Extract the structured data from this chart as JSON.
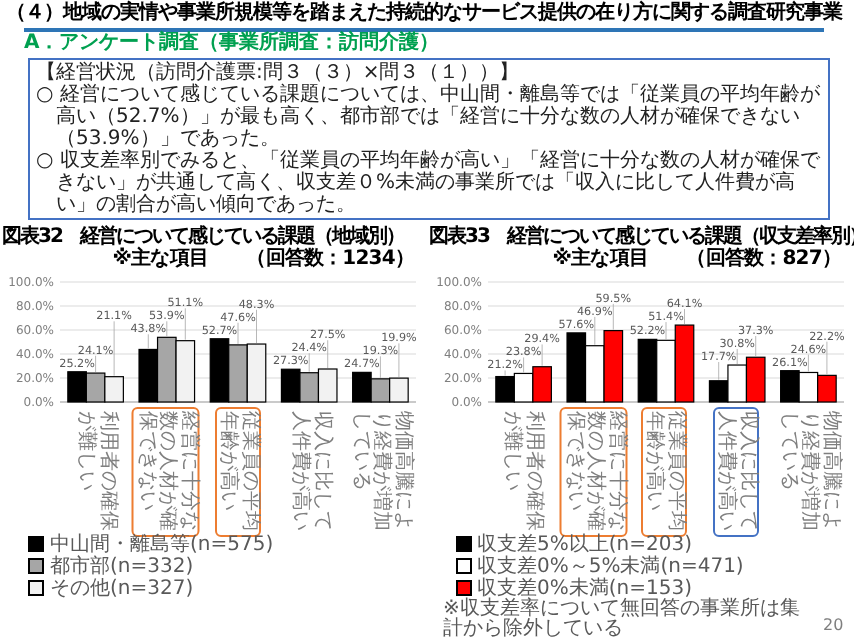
{
  "chart_data": [
    {
      "type": "bar",
      "title": "図表32　経営について感じている課題（地域別）",
      "subtitle": "※主な項目　　（回答数：1234）",
      "categories": [
        "利用者の確保が難しい",
        "経営に十分な数の人材が確保できない",
        "従業員の平均年齢が高い",
        "収入に比して人件費が高い",
        "物価高騰により経費が増加している"
      ],
      "series": [
        {
          "name": "中山間・離島等(n=575)",
          "color": "#000000",
          "values": [
            25.2,
            43.8,
            52.7,
            27.3,
            24.7
          ],
          "value_labels": [
            "25.2%",
            "43.8%",
            "52.7%",
            "27.3%",
            "24.7%"
          ]
        },
        {
          "name": "都市部(n=332)",
          "color": "#a6a6a6",
          "values": [
            24.1,
            53.9,
            47.6,
            24.4,
            19.3
          ],
          "value_labels": [
            "24.1%",
            "53.9%",
            "47.6%",
            "24.4%",
            "19.3%"
          ]
        },
        {
          "name": "その他(n=327)",
          "color": "#f2f2f2",
          "values": [
            21.1,
            51.1,
            48.3,
            27.5,
            19.9
          ],
          "value_labels": [
            "21.1%",
            "51.1%",
            "48.3%",
            "27.5%",
            "19.9%"
          ]
        }
      ],
      "ylim": [
        0,
        100
      ],
      "yticks": [
        {
          "value": 0,
          "label": "0.0%"
        },
        {
          "value": 20,
          "label": "20.0%"
        },
        {
          "value": 40,
          "label": "40.0%"
        },
        {
          "value": 60,
          "label": "60.0%"
        },
        {
          "value": 80,
          "label": "80.0%"
        },
        {
          "value": 100,
          "label": "100.0%"
        }
      ],
      "grid": "y",
      "legend": "bottom",
      "annotations": [
        "（４）地域の実情や事業所規模等を踏まえた持続的なサービス提供の在り方に関する調査研究事業",
        "A．アンケート調査（事業所調査：訪問介護）",
        "【経営状況（訪問介護票:問３（３）×問３（１））】",
        "○ 経営について感じている課題については、中山間・離島等では「従業員の平均年齢が高い（52.7%）」が最も高く、都市部では「経営に十分な数の人材が確保できない（53.9%）」であった。",
        "○ 収支差率別でみると、「従業員の平均年齢が高い」「経営に十分な数の人材が確保できない」が共通して高く、収支差０%未満の事業所では「収入に比して人件費が高い」の割合が高い傾向であった。"
      ]
    },
    {
      "type": "bar",
      "title": "図表33　経営について感じている課題（収支差率別）",
      "subtitle": "※主な項目　　（回答数：827）",
      "categories": [
        "利用者の確保が難しい",
        "経営に十分な数の人材が確保できない",
        "従業員の平均年齢が高い",
        "収入に比して人件費が高い",
        "物価高騰により経費が増加している"
      ],
      "series": [
        {
          "name": "収支差5%以上(n=203)",
          "color": "#000000",
          "values": [
            21.2,
            57.6,
            52.2,
            17.7,
            26.1
          ],
          "value_labels": [
            "21.2%",
            "57.6%",
            "52.2%",
            "17.7%",
            "26.1%"
          ]
        },
        {
          "name": "収支差0%～5%未満(n=471)",
          "color": "#ffffff",
          "values": [
            23.8,
            46.9,
            51.4,
            30.8,
            24.6
          ],
          "value_labels": [
            "23.8%",
            "46.9%",
            "51.4%",
            "30.8%",
            "24.6%"
          ]
        },
        {
          "name": "収支差0%未満(n=153)",
          "color": "#ff0000",
          "values": [
            29.4,
            59.5,
            64.1,
            37.3,
            22.2
          ],
          "value_labels": [
            "29.4%",
            "59.5%",
            "64.1%",
            "37.3%",
            "22.2%"
          ]
        }
      ],
      "ylim": [
        0,
        100
      ],
      "yticks": [
        {
          "value": 0,
          "label": "0.0%"
        },
        {
          "value": 20,
          "label": "20.0%"
        },
        {
          "value": 40,
          "label": "40.0%"
        },
        {
          "value": 60,
          "label": "60.0%"
        },
        {
          "value": 80,
          "label": "80.0%"
        },
        {
          "value": 100,
          "label": "100.0%"
        }
      ],
      "grid": "y",
      "legend": "bottom",
      "annotations": [
        "※収支差率について無回答の事業所は集計から除外している",
        "20"
      ]
    }
  ]
}
